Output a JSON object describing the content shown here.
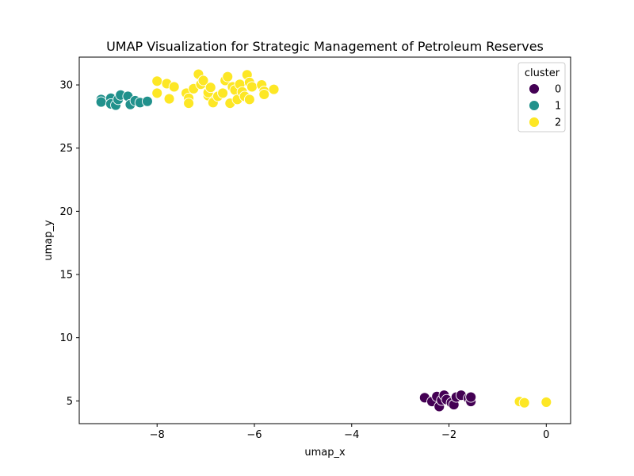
{
  "chart_data": {
    "type": "scatter",
    "title": "UMAP Visualization for Strategic Management of Petroleum Reserves",
    "xlabel": "umap_x",
    "ylabel": "umap_y",
    "xlim": [
      -9.6,
      0.5
    ],
    "ylim": [
      3.2,
      32.2
    ],
    "xticks": [
      -8,
      -6,
      -4,
      -2,
      0
    ],
    "yticks": [
      5,
      10,
      15,
      20,
      25,
      30
    ],
    "xtick_labels": [
      "−8",
      "−6",
      "−4",
      "−2",
      "0"
    ],
    "ytick_labels": [
      "5",
      "10",
      "15",
      "20",
      "25",
      "30"
    ],
    "grid": false,
    "legend": {
      "title": "cluster",
      "placement": "top-right"
    },
    "series": [
      {
        "name": "0",
        "color": "#440154",
        "points": [
          [
            -2.5,
            5.25
          ],
          [
            -2.35,
            4.95
          ],
          [
            -2.25,
            5.35
          ],
          [
            -2.2,
            4.55
          ],
          [
            -2.15,
            5.05
          ],
          [
            -2.1,
            5.45
          ],
          [
            -2.05,
            5.1
          ],
          [
            -1.95,
            4.85
          ],
          [
            -1.9,
            4.7
          ],
          [
            -1.85,
            5.3
          ],
          [
            -1.75,
            5.45
          ],
          [
            -1.6,
            5.2
          ],
          [
            -1.55,
            4.95
          ],
          [
            -1.55,
            5.3
          ]
        ]
      },
      {
        "name": "1",
        "color": "#21918c",
        "points": [
          [
            -9.15,
            28.85
          ],
          [
            -9.15,
            28.65
          ],
          [
            -8.95,
            28.95
          ],
          [
            -8.95,
            28.5
          ],
          [
            -8.85,
            28.4
          ],
          [
            -8.8,
            28.85
          ],
          [
            -8.75,
            29.2
          ],
          [
            -8.6,
            29.1
          ],
          [
            -8.55,
            28.45
          ],
          [
            -8.45,
            28.75
          ],
          [
            -8.35,
            28.6
          ],
          [
            -8.2,
            28.7
          ]
        ]
      },
      {
        "name": "2",
        "color": "#fde725",
        "points": [
          [
            -8.0,
            30.3
          ],
          [
            -8.0,
            29.35
          ],
          [
            -7.8,
            30.1
          ],
          [
            -7.75,
            28.9
          ],
          [
            -7.65,
            29.85
          ],
          [
            -7.4,
            29.35
          ],
          [
            -7.35,
            28.95
          ],
          [
            -7.35,
            28.55
          ],
          [
            -7.25,
            29.7
          ],
          [
            -7.15,
            30.85
          ],
          [
            -7.1,
            30.05
          ],
          [
            -7.05,
            30.35
          ],
          [
            -6.95,
            29.15
          ],
          [
            -6.95,
            29.4
          ],
          [
            -6.9,
            29.8
          ],
          [
            -6.85,
            28.6
          ],
          [
            -6.75,
            29.1
          ],
          [
            -6.65,
            29.35
          ],
          [
            -6.6,
            30.35
          ],
          [
            -6.55,
            30.65
          ],
          [
            -6.5,
            28.55
          ],
          [
            -6.45,
            29.85
          ],
          [
            -6.4,
            29.6
          ],
          [
            -6.35,
            28.85
          ],
          [
            -6.3,
            30.05
          ],
          [
            -6.25,
            29.45
          ],
          [
            -6.2,
            29.1
          ],
          [
            -6.15,
            30.8
          ],
          [
            -6.1,
            28.85
          ],
          [
            -6.1,
            30.2
          ],
          [
            -6.05,
            29.85
          ],
          [
            -5.85,
            30.0
          ],
          [
            -5.8,
            29.5
          ],
          [
            -5.8,
            29.25
          ],
          [
            -5.6,
            29.65
          ],
          [
            -0.55,
            4.95
          ],
          [
            -0.45,
            4.85
          ],
          [
            0.0,
            4.9
          ]
        ]
      }
    ]
  }
}
